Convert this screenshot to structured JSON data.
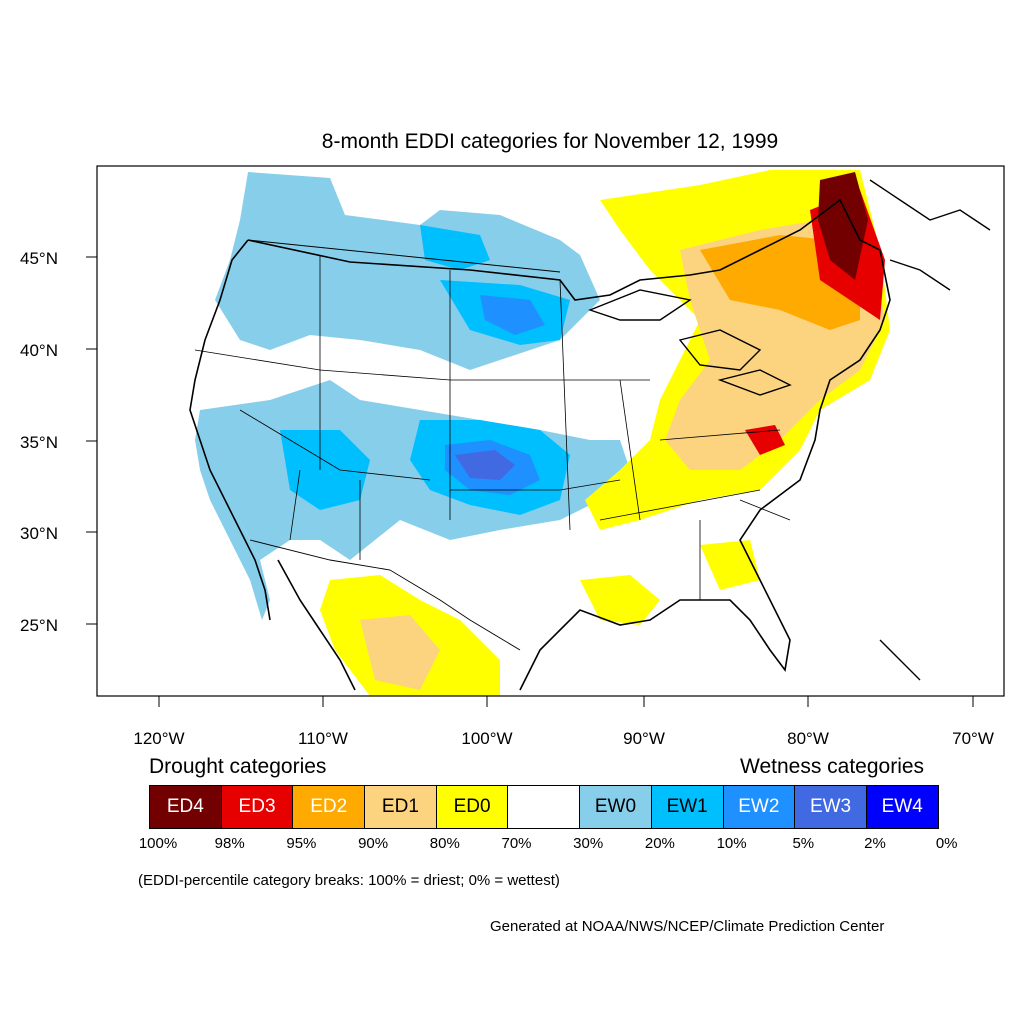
{
  "title": "8-month EDDI categories for November 12, 1999",
  "map": {
    "lat_labels": [
      "45°N",
      "40°N",
      "35°N",
      "30°N",
      "25°N"
    ],
    "lon_labels": [
      "120°W",
      "110°W",
      "100°W",
      "90°W",
      "80°W",
      "70°W"
    ]
  },
  "legend": {
    "drought_heading": "Drought categories",
    "wetness_heading": "Wetness categories",
    "categories": [
      {
        "label": "ED4",
        "color": "#730000",
        "text_color": "#ffffff"
      },
      {
        "label": "ED3",
        "color": "#e60000",
        "text_color": "#ffffff"
      },
      {
        "label": "ED2",
        "color": "#ffaa00",
        "text_color": "#ffffff"
      },
      {
        "label": "ED1",
        "color": "#fcd37f",
        "text_color": "#000000"
      },
      {
        "label": "ED0",
        "color": "#ffff00",
        "text_color": "#000000"
      },
      {
        "label": "",
        "color": "#ffffff",
        "text_color": "#000000"
      },
      {
        "label": "EW0",
        "color": "#87ceeb",
        "text_color": "#000000"
      },
      {
        "label": "EW1",
        "color": "#00bfff",
        "text_color": "#000000"
      },
      {
        "label": "EW2",
        "color": "#1e90ff",
        "text_color": "#ffffff"
      },
      {
        "label": "EW3",
        "color": "#4169e1",
        "text_color": "#ffffff"
      },
      {
        "label": "EW4",
        "color": "#0000ff",
        "text_color": "#ffffff"
      }
    ],
    "breaks": [
      "100%",
      "98%",
      "95%",
      "90%",
      "80%",
      "70%",
      "30%",
      "20%",
      "10%",
      "5%",
      "2%",
      "0%"
    ]
  },
  "note": "(EDDI-percentile category breaks: 100% = driest; 0% = wettest)",
  "credit": "Generated at NOAA/NWS/NCEP/Climate Prediction Center"
}
